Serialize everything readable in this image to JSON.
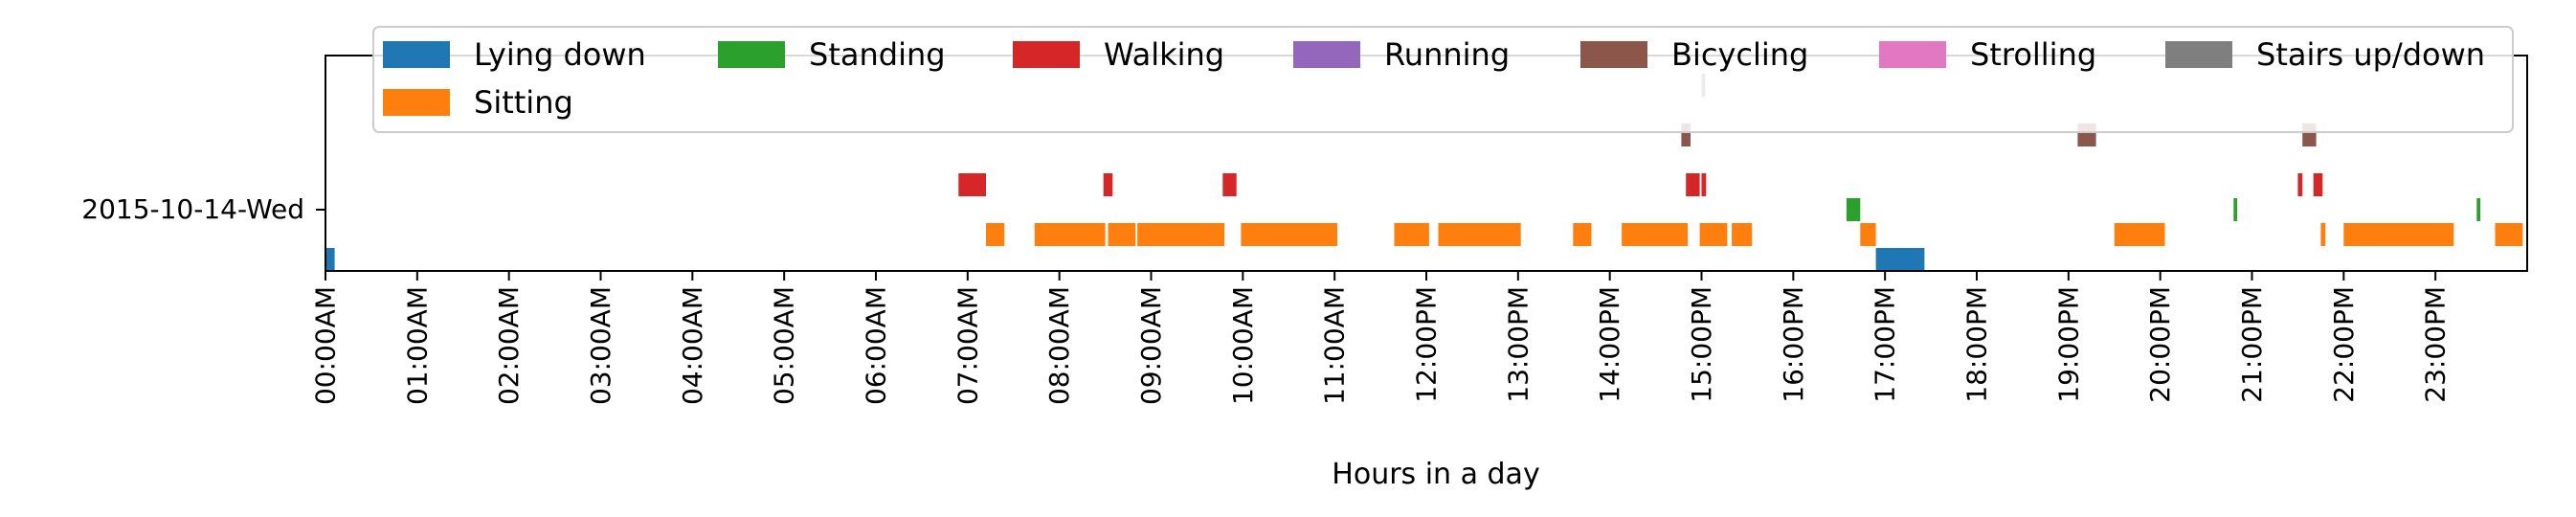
{
  "chart_data": {
    "type": "timeline",
    "xlabel": "Hours in a day",
    "xlim": [
      0,
      24
    ],
    "row_label": "2015-10-14-Wed",
    "x_tick_labels": [
      "00:00AM",
      "01:00AM",
      "02:00AM",
      "03:00AM",
      "04:00AM",
      "05:00AM",
      "06:00AM",
      "07:00AM",
      "08:00AM",
      "09:00AM",
      "10:00AM",
      "11:00AM",
      "12:00PM",
      "13:00PM",
      "14:00PM",
      "15:00PM",
      "16:00PM",
      "17:00PM",
      "18:00PM",
      "19:00PM",
      "20:00PM",
      "21:00PM",
      "22:00PM",
      "23:00PM"
    ],
    "legend_position": "top",
    "activities": [
      {
        "name": "Lying down",
        "color": "#1f77b4",
        "intervals": [
          [
            0.0,
            0.1
          ],
          [
            16.9,
            17.43
          ]
        ]
      },
      {
        "name": "Sitting",
        "color": "#ff7f0e",
        "intervals": [
          [
            7.2,
            7.4
          ],
          [
            7.73,
            8.5
          ],
          [
            8.53,
            8.83
          ],
          [
            8.85,
            9.8
          ],
          [
            9.98,
            11.03
          ],
          [
            11.65,
            12.03
          ],
          [
            12.13,
            13.03
          ],
          [
            13.6,
            13.8
          ],
          [
            14.13,
            14.85
          ],
          [
            14.98,
            15.28
          ],
          [
            15.33,
            15.55
          ],
          [
            16.73,
            16.9
          ],
          [
            19.5,
            20.05
          ],
          [
            21.75,
            21.8
          ],
          [
            22.0,
            23.2
          ],
          [
            23.65,
            23.95
          ]
        ]
      },
      {
        "name": "Standing",
        "color": "#2ca02c",
        "intervals": [
          [
            16.58,
            16.73
          ],
          [
            20.8,
            20.84
          ],
          [
            23.45,
            23.49
          ]
        ]
      },
      {
        "name": "Walking",
        "color": "#d62728",
        "intervals": [
          [
            6.9,
            7.2
          ],
          [
            8.48,
            8.58
          ],
          [
            9.78,
            9.93
          ],
          [
            14.83,
            14.98
          ],
          [
            15.0,
            15.05
          ],
          [
            21.5,
            21.55
          ],
          [
            21.67,
            21.77
          ]
        ]
      },
      {
        "name": "Running",
        "color": "#9467bd",
        "intervals": []
      },
      {
        "name": "Bicycling",
        "color": "#8c564b",
        "intervals": [
          [
            14.78,
            14.88
          ],
          [
            19.1,
            19.3
          ],
          [
            21.55,
            21.7
          ]
        ]
      },
      {
        "name": "Strolling",
        "color": "#e377c2",
        "intervals": []
      },
      {
        "name": "Stairs up/down",
        "color": "#7f7f7f",
        "intervals": [
          [
            15.0,
            15.04
          ]
        ]
      }
    ]
  }
}
